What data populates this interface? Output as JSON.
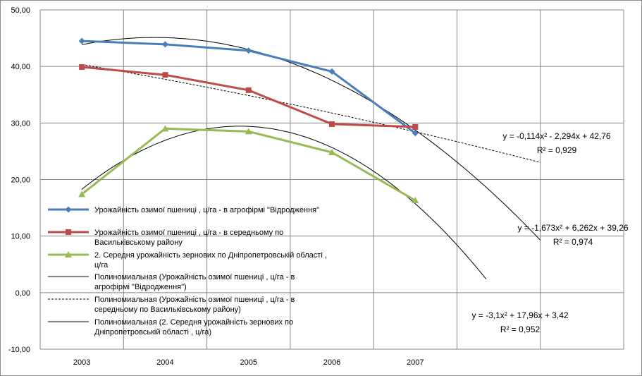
{
  "chart_data": {
    "type": "line",
    "categories": [
      "2003",
      "2004",
      "2005",
      "2006",
      "2007"
    ],
    "y_ticks": [
      "50,00",
      "40,00",
      "30,00",
      "20,00",
      "10,00",
      "0,00",
      "-10,00"
    ],
    "ylim": [
      -10,
      50
    ],
    "grid": true,
    "legend_position": "left",
    "series": [
      {
        "name": "Урожайність озимої пшениці , ц/га - в агрофірмі \"Відродження\"",
        "color": "#4a7ebb",
        "marker": "diamond",
        "values": [
          44.5,
          43.9,
          42.8,
          39.1,
          28.2
        ]
      },
      {
        "name": "Урожайність озимої пшениці , ц/га - в середньому по Васильківському району",
        "color": "#be4b48",
        "marker": "square",
        "values": [
          39.9,
          38.5,
          35.8,
          29.8,
          29.3
        ]
      },
      {
        "name": "2. Середня урожайність зернових по Дніпропетровській області , ц/га",
        "color": "#98b954",
        "marker": "triangle",
        "values": [
          17.4,
          29.0,
          28.5,
          24.8,
          16.3
        ]
      }
    ],
    "trendlines": [
      {
        "name": "Полиномиальная (Урожайність озимої пшениці , ц/га - в агрофірмі \"Відродження\")",
        "color": "#000000",
        "dash": false,
        "coefficients": [
          -1.673,
          6.262,
          39.26
        ],
        "x_range": [
          1,
          6.5
        ],
        "equation": "y = -1,673x² + 6,262x + 39,26",
        "r2": "R² = 0,974"
      },
      {
        "name": "Полиномиальная (Урожайність озимої пшениці , ц/га - в середньому по Васильківському району)",
        "color": "#000000",
        "dash": true,
        "coefficients": [
          -0.114,
          -2.294,
          42.76
        ],
        "x_range": [
          1,
          6.5
        ],
        "equation": "y = -0,114x² - 2,294x + 42,76",
        "r2": "R² = 0,929"
      },
      {
        "name": "Полиномиальная (2. Середня урожайність зернових по Дніпропетровській області , ц/га)",
        "color": "#000000",
        "dash": false,
        "coefficients": [
          -3.1,
          17.96,
          3.42
        ],
        "x_range": [
          1,
          5.85
        ],
        "equation": "y = -3,1x² + 17,96x + 3,42",
        "r2": "R² = 0,952"
      }
    ]
  }
}
